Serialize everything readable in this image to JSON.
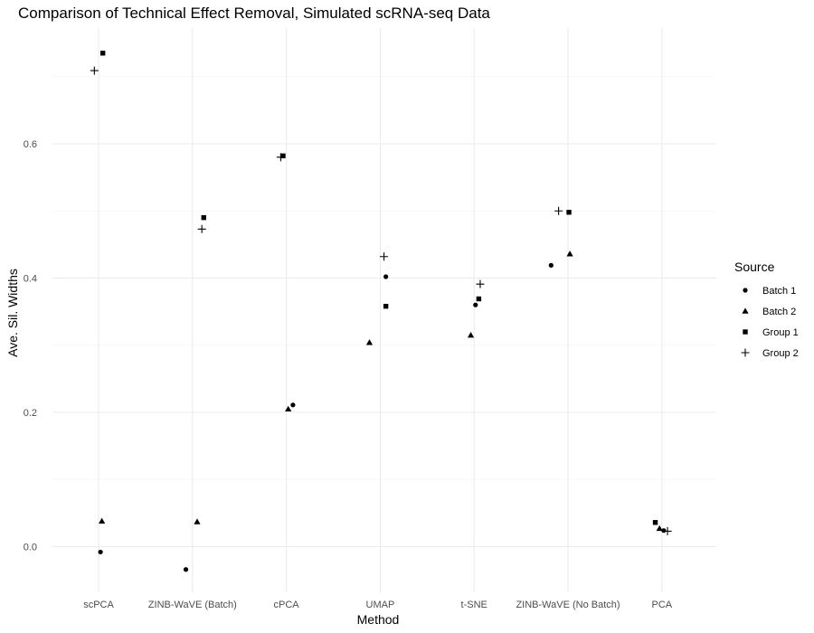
{
  "chart_data": {
    "type": "scatter",
    "title": "Comparison of Technical Effect Removal, Simulated scRNA-seq Data",
    "xlabel": "Method",
    "ylabel": "Ave. Sil. Widths",
    "categories": [
      "scPCA",
      "ZINB-WaVE (Batch)",
      "cPCA",
      "UMAP",
      "t-SNE",
      "ZINB-WaVE (No Batch)",
      "PCA"
    ],
    "ylim": [
      -0.07,
      0.78
    ],
    "yticks": [
      0.0,
      0.2,
      0.4,
      0.6
    ],
    "ytick_labels": [
      "0.0",
      "0.2",
      "0.4",
      "0.6"
    ],
    "grid": true,
    "legend": {
      "title": "Source",
      "position": "right"
    },
    "series": [
      {
        "name": "Batch 1",
        "marker": "circle",
        "color": "#000000",
        "points": [
          {
            "category": "scPCA",
            "y": -0.008,
            "jitter": 0.04
          },
          {
            "category": "ZINB-WaVE (Batch)",
            "y": -0.034,
            "jitter": -0.14
          },
          {
            "category": "cPCA",
            "y": 0.211,
            "jitter": 0.14
          },
          {
            "category": "UMAP",
            "y": 0.402,
            "jitter": 0.12
          },
          {
            "category": "t-SNE",
            "y": 0.36,
            "jitter": 0.03
          },
          {
            "category": "ZINB-WaVE (No Batch)",
            "y": 0.419,
            "jitter": -0.36
          },
          {
            "category": "PCA",
            "y": 0.024,
            "jitter": 0.04
          }
        ]
      },
      {
        "name": "Batch 2",
        "marker": "triangle",
        "color": "#000000",
        "points": [
          {
            "category": "scPCA",
            "y": 0.038,
            "jitter": 0.07
          },
          {
            "category": "ZINB-WaVE (Batch)",
            "y": 0.037,
            "jitter": 0.1
          },
          {
            "category": "cPCA",
            "y": 0.205,
            "jitter": 0.04
          },
          {
            "category": "UMAP",
            "y": 0.304,
            "jitter": -0.23
          },
          {
            "category": "t-SNE",
            "y": 0.315,
            "jitter": -0.07
          },
          {
            "category": "ZINB-WaVE (No Batch)",
            "y": 0.436,
            "jitter": 0.04
          },
          {
            "category": "PCA",
            "y": 0.027,
            "jitter": -0.05
          }
        ]
      },
      {
        "name": "Group 1",
        "marker": "square",
        "color": "#000000",
        "points": [
          {
            "category": "scPCA",
            "y": 0.735,
            "jitter": 0.09
          },
          {
            "category": "ZINB-WaVE (Batch)",
            "y": 0.49,
            "jitter": 0.24
          },
          {
            "category": "cPCA",
            "y": 0.582,
            "jitter": -0.07
          },
          {
            "category": "UMAP",
            "y": 0.358,
            "jitter": 0.12
          },
          {
            "category": "t-SNE",
            "y": 0.369,
            "jitter": 0.1
          },
          {
            "category": "ZINB-WaVE (No Batch)",
            "y": 0.498,
            "jitter": 0.02
          },
          {
            "category": "PCA",
            "y": 0.036,
            "jitter": -0.14
          }
        ]
      },
      {
        "name": "Group 2",
        "marker": "plus",
        "color": "#000000",
        "points": [
          {
            "category": "scPCA",
            "y": 0.709,
            "jitter": -0.09
          },
          {
            "category": "ZINB-WaVE (Batch)",
            "y": 0.473,
            "jitter": 0.2
          },
          {
            "category": "cPCA",
            "y": 0.58,
            "jitter": -0.12
          },
          {
            "category": "UMAP",
            "y": 0.432,
            "jitter": 0.08
          },
          {
            "category": "t-SNE",
            "y": 0.391,
            "jitter": 0.13
          },
          {
            "category": "ZINB-WaVE (No Batch)",
            "y": 0.5,
            "jitter": -0.2
          },
          {
            "category": "PCA",
            "y": 0.023,
            "jitter": 0.12
          }
        ]
      }
    ]
  }
}
